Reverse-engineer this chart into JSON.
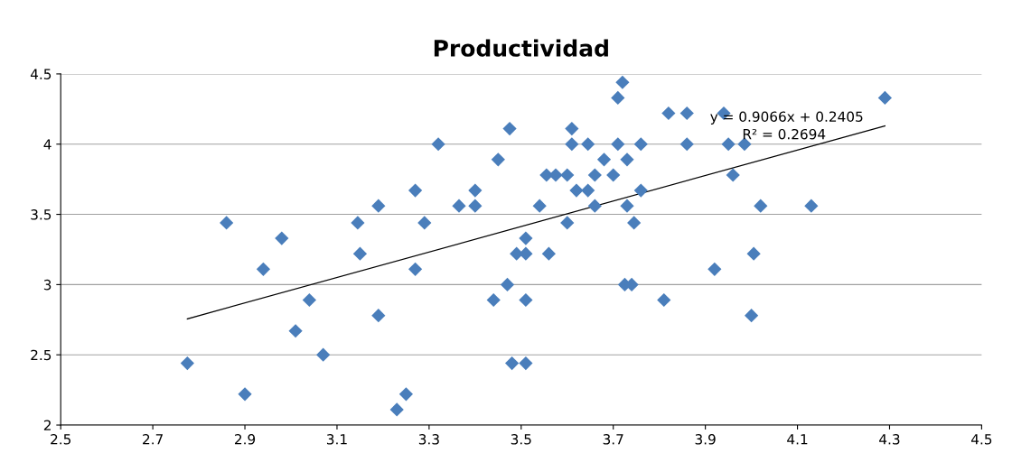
{
  "chart_data": {
    "type": "scatter",
    "title": "Productividad",
    "series": [
      {
        "color": "#4a7ebb",
        "marker": "diamond",
        "x": [
          2.775,
          2.86,
          2.9,
          2.94,
          2.98,
          3.04,
          3.01,
          3.07,
          3.145,
          3.15,
          3.19,
          3.19,
          3.23,
          3.25,
          3.27,
          3.27,
          3.29,
          3.32,
          3.365,
          3.4,
          3.4,
          3.45,
          3.44,
          3.47,
          3.475,
          3.48,
          3.49,
          3.51,
          3.51,
          3.51,
          3.51,
          3.54,
          3.555,
          3.56,
          3.575,
          3.61,
          3.61,
          3.6,
          3.6,
          3.62,
          3.645,
          3.645,
          3.66,
          3.66,
          3.68,
          3.7,
          3.71,
          3.71,
          3.72,
          3.73,
          3.73,
          3.725,
          3.74,
          3.745,
          3.76,
          3.76,
          3.81,
          3.82,
          3.86,
          3.86,
          3.94,
          3.95,
          3.96,
          3.985,
          4.005,
          4.0,
          4.02,
          4.13,
          4.29,
          3.92
        ],
        "values": [
          2.44,
          3.44,
          2.22,
          3.11,
          3.33,
          2.89,
          2.67,
          2.5,
          3.44,
          3.22,
          3.56,
          2.78,
          2.11,
          2.22,
          3.67,
          3.11,
          3.44,
          4.0,
          3.56,
          3.67,
          3.56,
          3.89,
          2.89,
          3.0,
          4.11,
          2.44,
          3.22,
          3.33,
          2.44,
          3.22,
          2.89,
          3.56,
          3.78,
          3.22,
          3.78,
          4.11,
          4.0,
          3.78,
          3.44,
          3.67,
          4.0,
          3.67,
          3.78,
          3.56,
          3.89,
          3.78,
          4.0,
          4.33,
          4.44,
          3.89,
          3.56,
          3.0,
          3.0,
          3.44,
          4.0,
          3.67,
          2.89,
          4.22,
          4.22,
          4.0,
          4.22,
          4.0,
          3.78,
          4.0,
          3.22,
          2.78,
          3.56,
          3.56,
          4.33,
          3.11
        ]
      },
      {
        "type": "line",
        "color": "#000000",
        "marker": "none",
        "line_style": "solid",
        "x": [
          2.775,
          4.29
        ],
        "values": [
          2.756,
          4.13
        ]
      }
    ],
    "annotations": [
      "y = 0.9066x + 0.2405",
      "R² = 0.2694"
    ],
    "xlim": [
      2.5,
      4.5
    ],
    "xticks": [
      2.5,
      2.7,
      2.9,
      3.1,
      3.3,
      3.5,
      3.7,
      3.9,
      4.1,
      4.3,
      4.5
    ],
    "ylim": [
      2,
      4.5
    ],
    "yticks": [
      2,
      2.5,
      3,
      3.5,
      4,
      4.5
    ],
    "grid": "y",
    "legend": false
  }
}
